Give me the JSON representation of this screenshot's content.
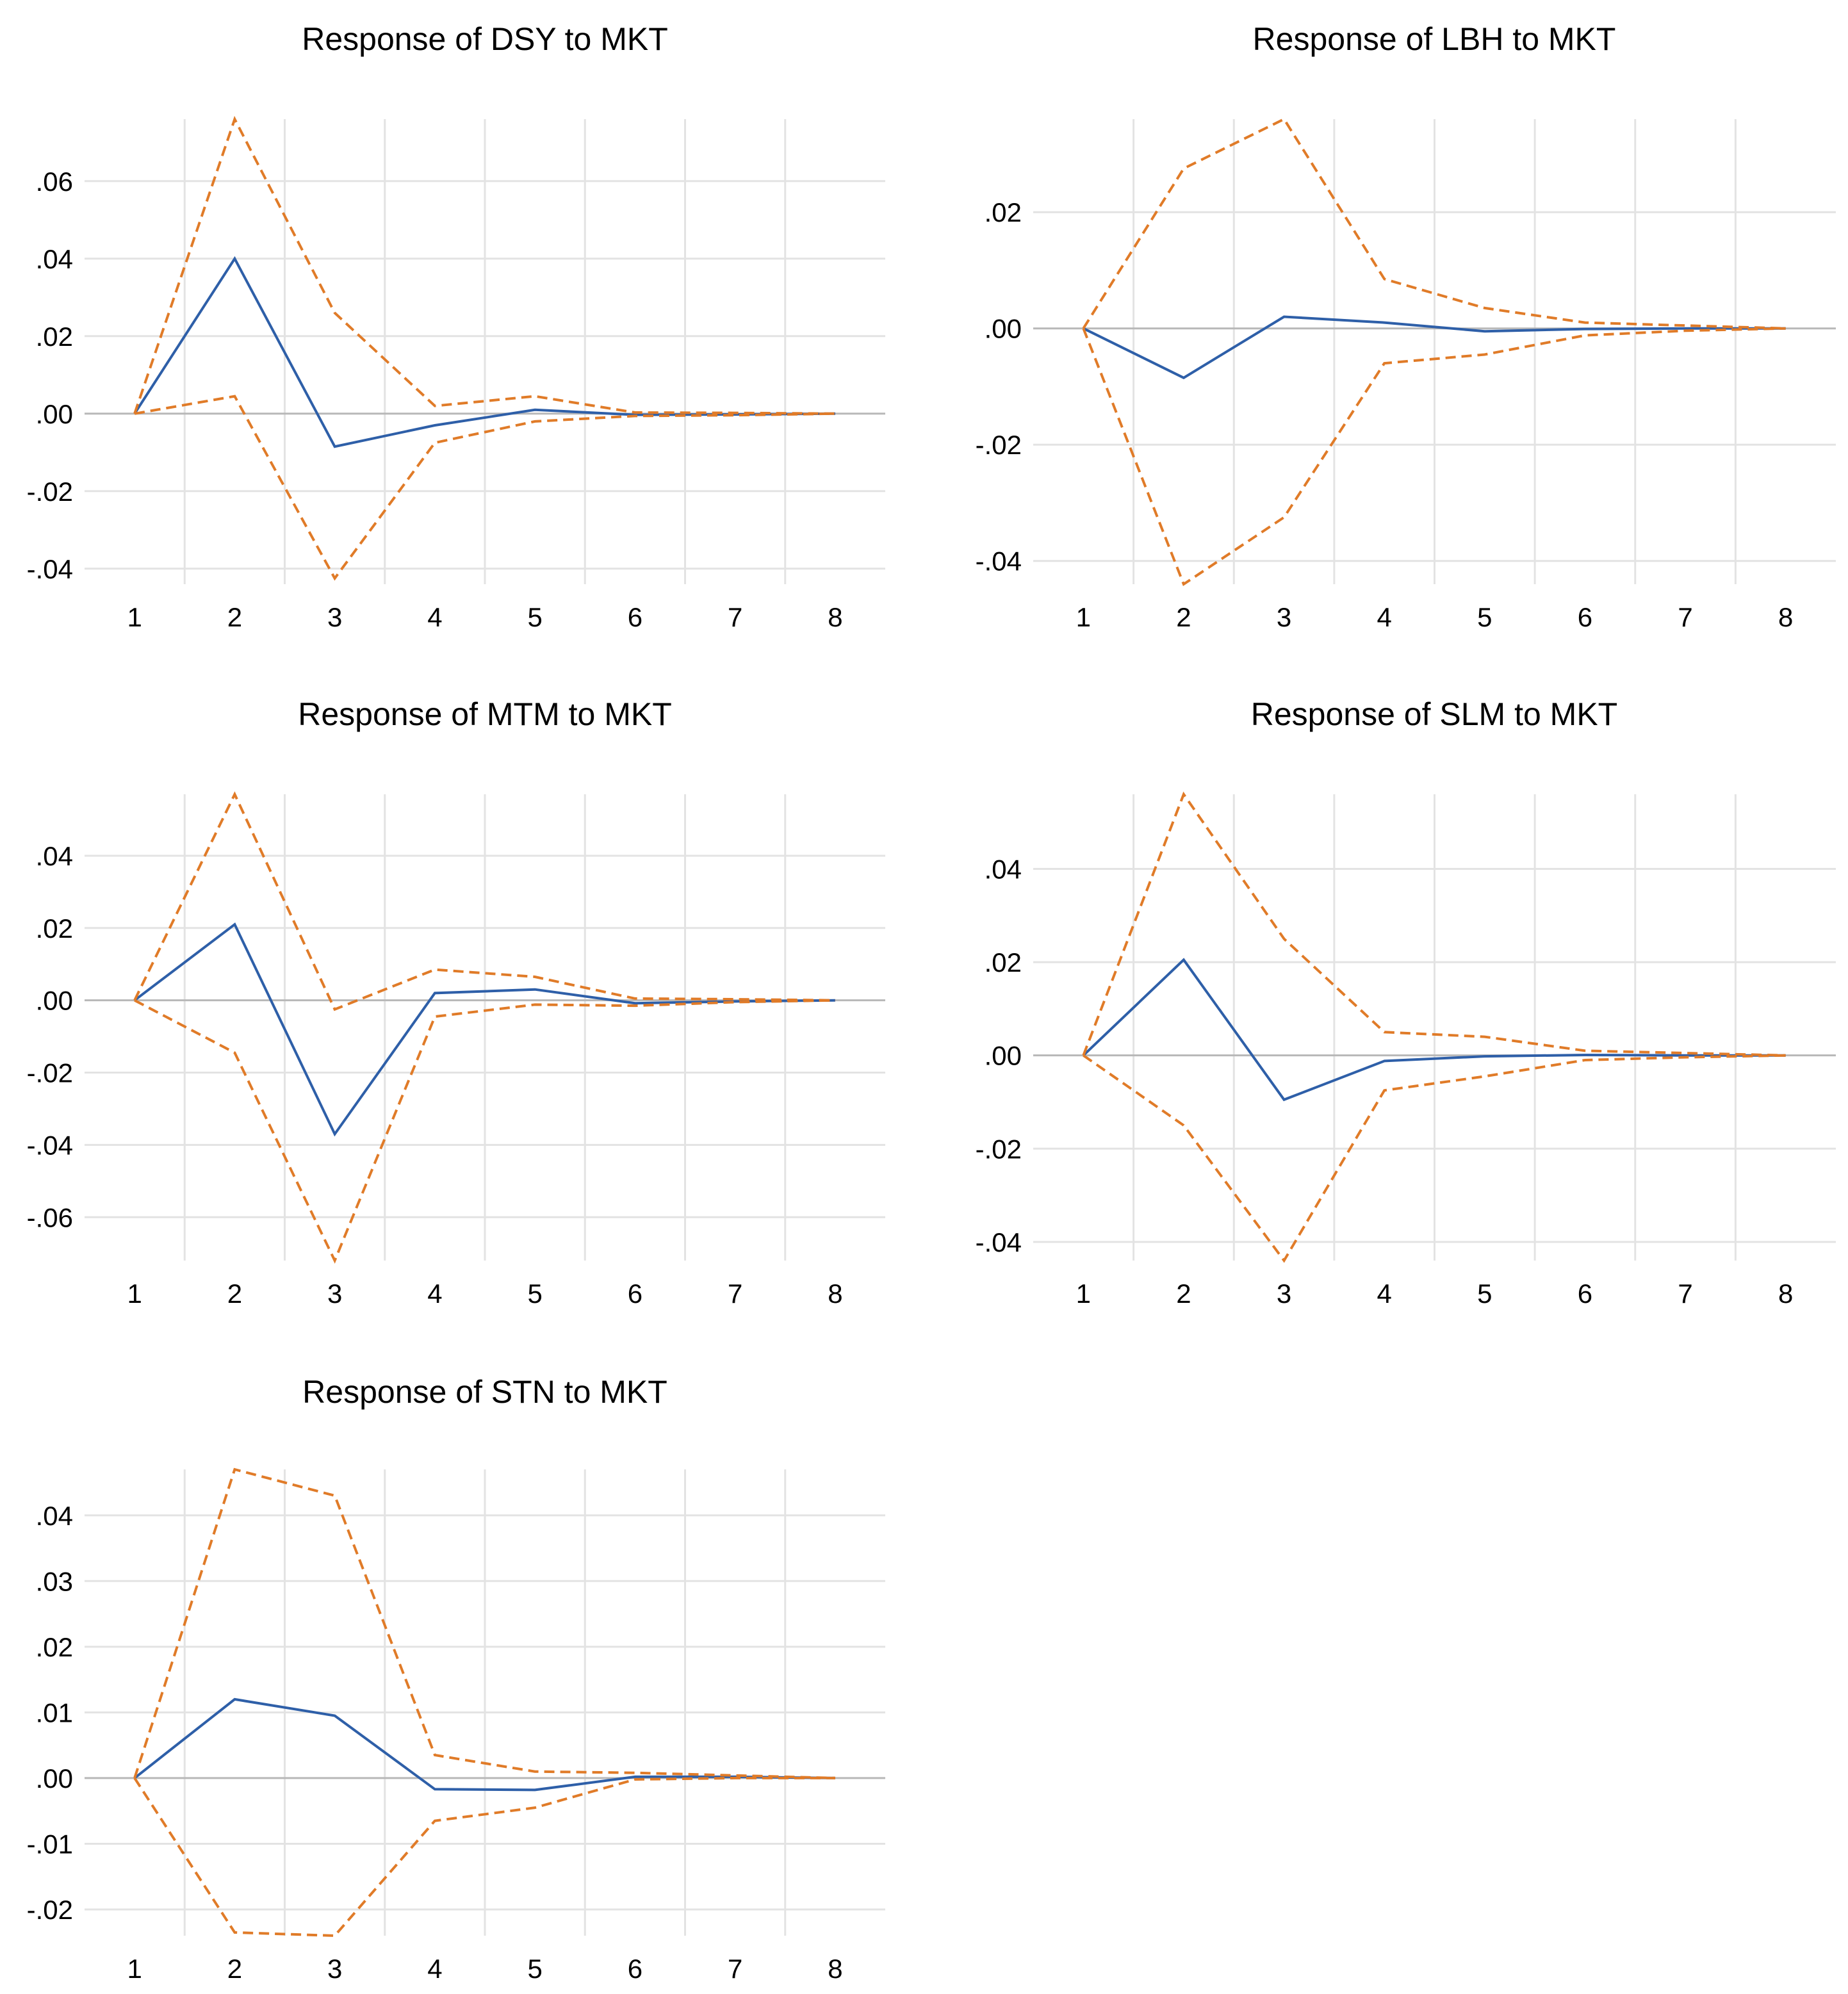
{
  "chart_data": [
    {
      "type": "line",
      "title": "Response of DSY to MKT",
      "x": [
        1,
        2,
        3,
        4,
        5,
        6,
        7,
        8
      ],
      "x_tick_labels": [
        "1",
        "2",
        "3",
        "4",
        "5",
        "6",
        "7",
        "8"
      ],
      "ylim": [
        -0.044,
        0.076
      ],
      "y_ticks": [
        0.06,
        0.04,
        0.02,
        0.0,
        -0.02,
        -0.04
      ],
      "y_tick_labels": [
        ".06",
        ".04",
        ".02",
        ".00",
        "-.02",
        "-.04"
      ],
      "grid": true,
      "series": [
        {
          "role": "response",
          "style": "solid",
          "color": "#2e5fa8",
          "values": [
            0.0,
            0.04,
            -0.0085,
            -0.003,
            0.001,
            -0.0003,
            -0.0002,
            0.0
          ]
        },
        {
          "role": "upper",
          "style": "dashed",
          "color": "#e07b28",
          "values": [
            0.0,
            0.076,
            0.026,
            0.002,
            0.0045,
            0.0003,
            0.0002,
            0.0
          ]
        },
        {
          "role": "lower",
          "style": "dashed",
          "color": "#e07b28",
          "values": [
            0.0,
            0.0045,
            -0.0425,
            -0.0075,
            -0.002,
            -0.0006,
            -0.0004,
            0.0
          ]
        }
      ]
    },
    {
      "type": "line",
      "title": "Response of LBH to MKT",
      "x": [
        1,
        2,
        3,
        4,
        5,
        6,
        7,
        8
      ],
      "x_tick_labels": [
        "1",
        "2",
        "3",
        "4",
        "5",
        "6",
        "7",
        "8"
      ],
      "ylim": [
        -0.044,
        0.036
      ],
      "y_ticks": [
        0.02,
        0.0,
        -0.02,
        -0.04
      ],
      "y_tick_labels": [
        ".02",
        ".00",
        "-.02",
        "-.04"
      ],
      "grid": true,
      "series": [
        {
          "role": "response",
          "style": "solid",
          "color": "#2e5fa8",
          "values": [
            0.0,
            -0.0085,
            0.002,
            0.001,
            -0.0005,
            -0.0001,
            0.0,
            0.0
          ]
        },
        {
          "role": "upper",
          "style": "dashed",
          "color": "#e07b28",
          "values": [
            0.0,
            0.0275,
            0.036,
            0.0085,
            0.0035,
            0.001,
            0.0005,
            0.0
          ]
        },
        {
          "role": "lower",
          "style": "dashed",
          "color": "#e07b28",
          "values": [
            0.0,
            -0.044,
            -0.0325,
            -0.006,
            -0.0045,
            -0.0012,
            -0.0004,
            0.0
          ]
        }
      ]
    },
    {
      "type": "line",
      "title": "Response of MTM to MKT",
      "x": [
        1,
        2,
        3,
        4,
        5,
        6,
        7,
        8
      ],
      "x_tick_labels": [
        "1",
        "2",
        "3",
        "4",
        "5",
        "6",
        "7",
        "8"
      ],
      "ylim": [
        -0.072,
        0.057
      ],
      "y_ticks": [
        0.04,
        0.02,
        0.0,
        -0.02,
        -0.04,
        -0.06
      ],
      "y_tick_labels": [
        ".04",
        ".02",
        ".00",
        "-.02",
        "-.04",
        "-.06"
      ],
      "grid": true,
      "series": [
        {
          "role": "response",
          "style": "solid",
          "color": "#2e5fa8",
          "values": [
            0.0,
            0.021,
            -0.037,
            0.002,
            0.003,
            -0.0008,
            -0.0003,
            0.0
          ]
        },
        {
          "role": "upper",
          "style": "dashed",
          "color": "#e07b28",
          "values": [
            0.0,
            0.057,
            -0.0025,
            0.0085,
            0.0065,
            0.0005,
            0.0003,
            0.0
          ]
        },
        {
          "role": "lower",
          "style": "dashed",
          "color": "#e07b28",
          "values": [
            0.0,
            -0.0145,
            -0.072,
            -0.0045,
            -0.0012,
            -0.0015,
            -0.0005,
            0.0
          ]
        }
      ]
    },
    {
      "type": "line",
      "title": "Response of SLM to MKT",
      "x": [
        1,
        2,
        3,
        4,
        5,
        6,
        7,
        8
      ],
      "x_tick_labels": [
        "1",
        "2",
        "3",
        "4",
        "5",
        "6",
        "7",
        "8"
      ],
      "ylim": [
        -0.044,
        0.056
      ],
      "y_ticks": [
        0.04,
        0.02,
        0.0,
        -0.02,
        -0.04
      ],
      "y_tick_labels": [
        ".04",
        ".02",
        ".00",
        "-.02",
        "-.04"
      ],
      "grid": true,
      "series": [
        {
          "role": "response",
          "style": "solid",
          "color": "#2e5fa8",
          "values": [
            0.0,
            0.0205,
            -0.0095,
            -0.0012,
            -0.0002,
            0.0001,
            0.0,
            0.0
          ]
        },
        {
          "role": "upper",
          "style": "dashed",
          "color": "#e07b28",
          "values": [
            0.0,
            0.056,
            0.025,
            0.005,
            0.004,
            0.001,
            0.0005,
            0.0
          ]
        },
        {
          "role": "lower",
          "style": "dashed",
          "color": "#e07b28",
          "values": [
            0.0,
            -0.015,
            -0.044,
            -0.0075,
            -0.0045,
            -0.001,
            -0.0004,
            0.0
          ]
        }
      ]
    },
    {
      "type": "line",
      "title": "Response of STN to MKT",
      "x": [
        1,
        2,
        3,
        4,
        5,
        6,
        7,
        8
      ],
      "x_tick_labels": [
        "1",
        "2",
        "3",
        "4",
        "5",
        "6",
        "7",
        "8"
      ],
      "ylim": [
        -0.024,
        0.047
      ],
      "y_ticks": [
        0.04,
        0.03,
        0.02,
        0.01,
        0.0,
        -0.01,
        -0.02
      ],
      "y_tick_labels": [
        ".04",
        ".03",
        ".02",
        ".01",
        ".00",
        "-.01",
        "-.02"
      ],
      "grid": true,
      "series": [
        {
          "role": "response",
          "style": "solid",
          "color": "#2e5fa8",
          "values": [
            0.0,
            0.012,
            0.0095,
            -0.0017,
            -0.0018,
            0.0002,
            0.0002,
            0.0
          ]
        },
        {
          "role": "upper",
          "style": "dashed",
          "color": "#e07b28",
          "values": [
            0.0,
            0.047,
            0.043,
            0.0035,
            0.001,
            0.0008,
            0.0004,
            0.0
          ]
        },
        {
          "role": "lower",
          "style": "dashed",
          "color": "#e07b28",
          "values": [
            0.0,
            -0.0235,
            -0.024,
            -0.0065,
            -0.0045,
            -0.0002,
            0.0,
            0.0
          ]
        }
      ]
    }
  ]
}
